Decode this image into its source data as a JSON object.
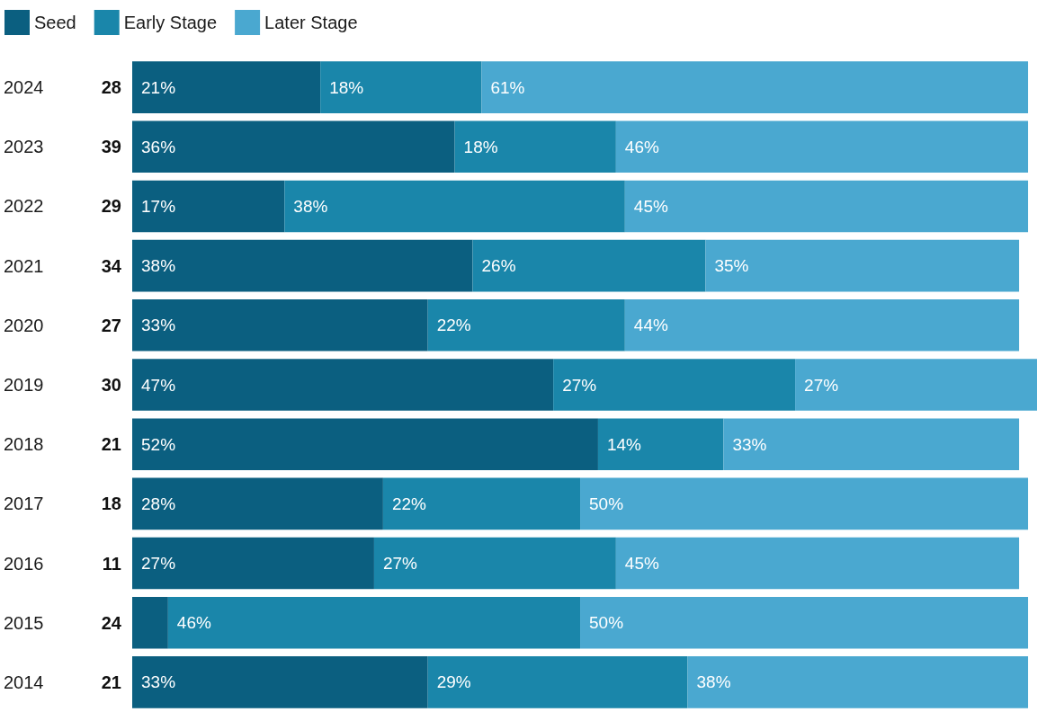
{
  "chart_data": {
    "type": "bar",
    "orientation": "horizontal",
    "stacked": true,
    "legend": "top left",
    "tick_labels": "y",
    "categories": [
      "2024",
      "2023",
      "2022",
      "2021",
      "2020",
      "2019",
      "2018",
      "2017",
      "2016",
      "2015",
      "2014"
    ],
    "xlim": [
      0,
      101
    ],
    "series": [
      {
        "name": "Seed",
        "color": "#0b5f80",
        "values": [
          21,
          36,
          17,
          38,
          33,
          47,
          52,
          28,
          27,
          4,
          33
        ],
        "value_labels": [
          "21%",
          "36%",
          "17%",
          "38%",
          "33%",
          "47%",
          "52%",
          "28%",
          "27%",
          null,
          "33%"
        ]
      },
      {
        "name": "Early Stage",
        "color": "#1a86aa",
        "values": [
          18,
          18,
          38,
          26,
          22,
          27,
          14,
          22,
          27,
          46,
          29
        ],
        "value_labels": [
          "18%",
          "18%",
          "38%",
          "26%",
          "22%",
          "27%",
          "14%",
          "22%",
          "27%",
          "46%",
          "29%"
        ]
      },
      {
        "name": "Later Stage",
        "color": "#4aa8d0",
        "values": [
          61,
          46,
          45,
          35,
          44,
          27,
          33,
          50,
          45,
          50,
          38
        ],
        "value_labels": [
          "61%",
          "46%",
          "45%",
          "35%",
          "44%",
          "27%",
          "33%",
          "50%",
          "45%",
          "50%",
          "38%"
        ]
      }
    ],
    "annotations": [
      "28",
      "39",
      "29",
      "34",
      "27",
      "30",
      "21",
      "18",
      "11",
      "24",
      "21"
    ]
  }
}
